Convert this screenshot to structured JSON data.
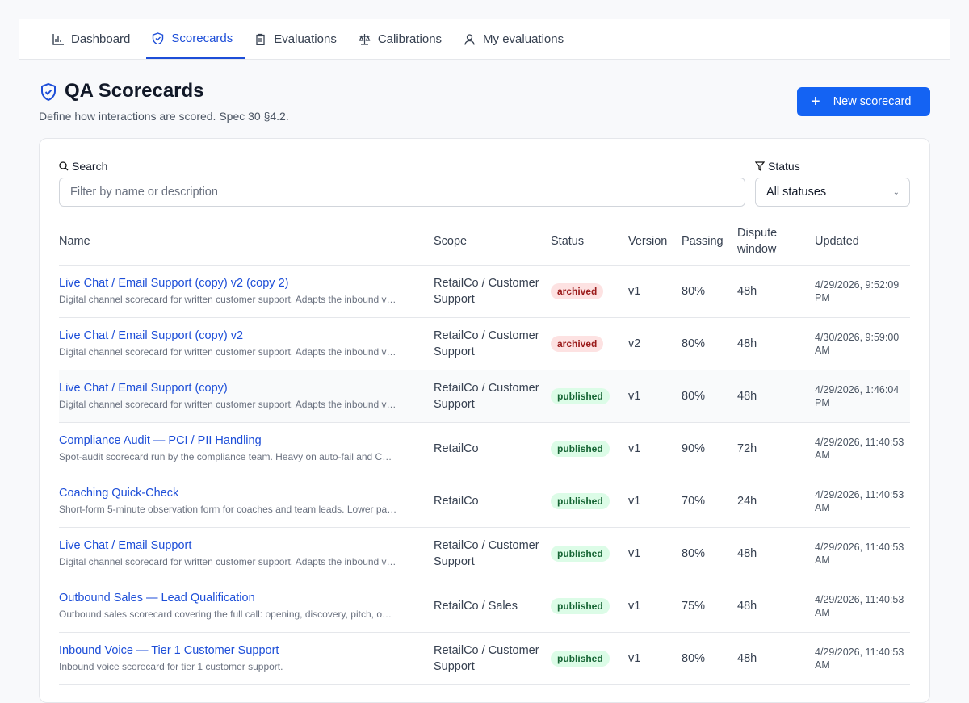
{
  "nav": {
    "tabs": [
      "Dashboard",
      "Scorecards",
      "Evaluations",
      "Calibrations",
      "My evaluations"
    ],
    "active": 1
  },
  "header": {
    "title": "QA Scorecards",
    "subtitle": "Define how interactions are scored. Spec 30 §4.2.",
    "button": "New scorecard"
  },
  "filters": {
    "search_label": "Search",
    "search_placeholder": "Filter by name or description",
    "status_label": "Status",
    "status_value": "All statuses"
  },
  "table": {
    "columns": [
      "Name",
      "Scope",
      "Status",
      "Version",
      "Passing",
      "Dispute window",
      "Updated"
    ],
    "rows": [
      {
        "name": "Live Chat / Email Support (copy) v2 (copy 2)",
        "description": "Digital channel scorecard for written customer support. Adapts the inbound v…",
        "scope": "RetailCo / Customer Support",
        "status": "archived",
        "version": "v1",
        "passing": "80%",
        "dispute": "48h",
        "updated": "4/29/2026, 9:52:09 PM"
      },
      {
        "name": "Live Chat / Email Support (copy) v2",
        "description": "Digital channel scorecard for written customer support. Adapts the inbound v…",
        "scope": "RetailCo / Customer Support",
        "status": "archived",
        "version": "v2",
        "passing": "80%",
        "dispute": "48h",
        "updated": "4/30/2026, 9:59:00 AM"
      },
      {
        "name": "Live Chat / Email Support (copy)",
        "description": "Digital channel scorecard for written customer support. Adapts the inbound v…",
        "scope": "RetailCo / Customer Support",
        "status": "published",
        "version": "v1",
        "passing": "80%",
        "dispute": "48h",
        "updated": "4/29/2026, 1:46:04 PM"
      },
      {
        "name": "Compliance Audit — PCI / PII Handling",
        "description": "Spot-audit scorecard run by the compliance team. Heavy on auto-fail and C…",
        "scope": "RetailCo",
        "status": "published",
        "version": "v1",
        "passing": "90%",
        "dispute": "72h",
        "updated": "4/29/2026, 11:40:53 AM"
      },
      {
        "name": "Coaching Quick-Check",
        "description": "Short-form 5-minute observation form for coaches and team leads. Lower pa…",
        "scope": "RetailCo",
        "status": "published",
        "version": "v1",
        "passing": "70%",
        "dispute": "24h",
        "updated": "4/29/2026, 11:40:53 AM"
      },
      {
        "name": "Live Chat / Email Support",
        "description": "Digital channel scorecard for written customer support. Adapts the inbound v…",
        "scope": "RetailCo / Customer Support",
        "status": "published",
        "version": "v1",
        "passing": "80%",
        "dispute": "48h",
        "updated": "4/29/2026, 11:40:53 AM"
      },
      {
        "name": "Outbound Sales — Lead Qualification",
        "description": "Outbound sales scorecard covering the full call: opening, discovery, pitch, o…",
        "scope": "RetailCo / Sales",
        "status": "published",
        "version": "v1",
        "passing": "75%",
        "dispute": "48h",
        "updated": "4/29/2026, 11:40:53 AM"
      },
      {
        "name": "Inbound Voice — Tier 1 Customer Support",
        "description": "Inbound voice scorecard for tier 1 customer support.",
        "scope": "RetailCo / Customer Support",
        "status": "published",
        "version": "v1",
        "passing": "80%",
        "dispute": "48h",
        "updated": "4/29/2026, 11:40:53 AM"
      }
    ]
  }
}
